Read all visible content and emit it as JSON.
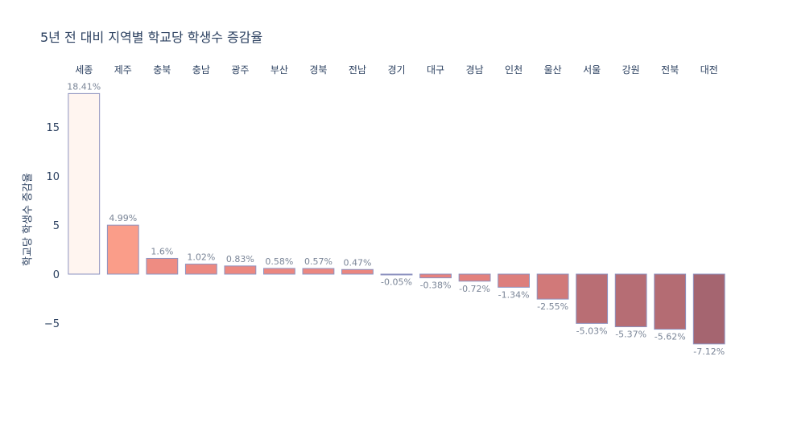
{
  "chart_data": {
    "type": "bar",
    "title": "5년 전 대비 지역별 학교당 학생수 증감율",
    "xlabel": "",
    "ylabel": "학교당 학생수 증감율",
    "categories": [
      "세종",
      "제주",
      "충북",
      "충남",
      "광주",
      "부산",
      "경북",
      "전남",
      "경기",
      "대구",
      "경남",
      "인천",
      "울산",
      "서울",
      "강원",
      "전북",
      "대전"
    ],
    "values": [
      18.41,
      4.99,
      1.6,
      1.02,
      0.83,
      0.58,
      0.57,
      0.47,
      -0.05,
      -0.38,
      -0.72,
      -1.34,
      -2.55,
      -5.03,
      -5.37,
      -5.62,
      -7.12
    ],
    "data_labels": [
      "18.41%",
      "4.99%",
      "1.6%",
      "1.02%",
      "0.83%",
      "0.58%",
      "0.57%",
      "0.47%",
      "-0.05%",
      "-0.38%",
      "-0.72%",
      "-1.34%",
      "-2.55%",
      "-5.03%",
      "-5.37%",
      "-5.62%",
      "-7.12%"
    ],
    "y_ticks": [
      15,
      10,
      5,
      0,
      -5
    ],
    "y_tick_labels": [
      "15",
      "10",
      "5",
      "0",
      "−5"
    ],
    "ylim": [
      -8.2,
      18.7
    ],
    "x_axis_position": "top",
    "grid": false,
    "legend": "none",
    "colors": {
      "scale_high": "#fff5f0",
      "scale_mid_high": "#fca08a",
      "scale_mid": "#e8837e",
      "scale_low": "#a56570",
      "bar_outline": "#8e93c0",
      "label_text": "#7a8597",
      "axis_text": "#2a3f5f"
    }
  }
}
